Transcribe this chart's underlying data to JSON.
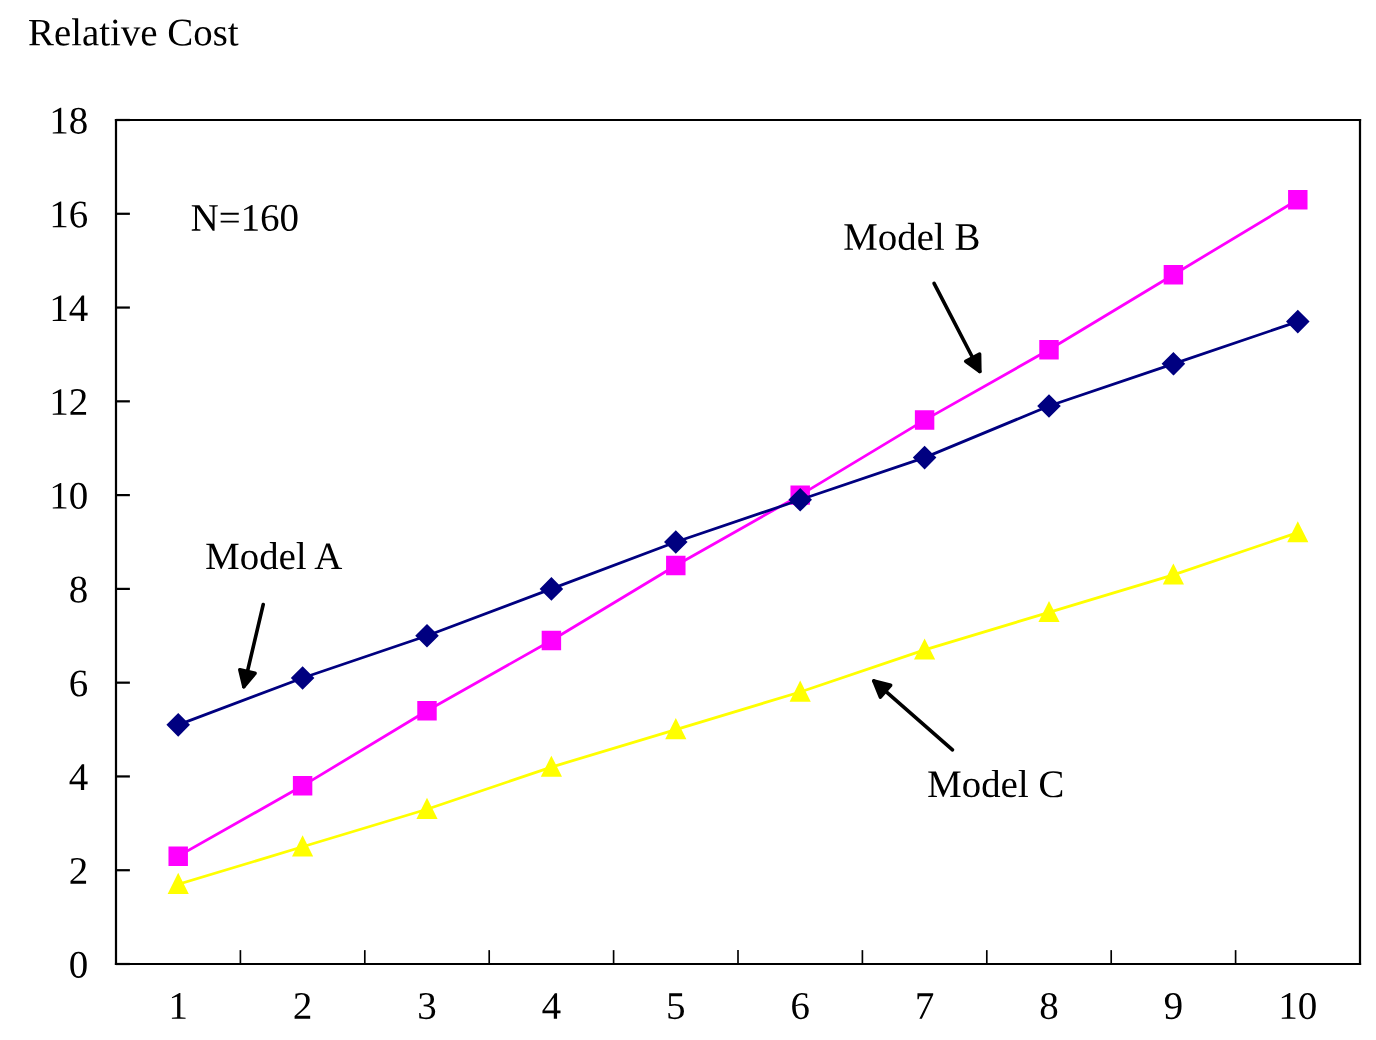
{
  "chart_data": {
    "type": "line",
    "ylabel": "Relative Cost",
    "categories": [
      "1",
      "2",
      "3",
      "4",
      "5",
      "6",
      "7",
      "8",
      "9",
      "10"
    ],
    "series": [
      {
        "name": "Model A",
        "color": "#000080",
        "marker": "diamond",
        "values": [
          5.1,
          6.1,
          7.0,
          8.0,
          9.0,
          9.9,
          10.8,
          11.9,
          12.8,
          13.7
        ]
      },
      {
        "name": "Model B",
        "color": "#ff00ff",
        "marker": "square",
        "values": [
          2.3,
          3.8,
          5.4,
          6.9,
          8.5,
          10.0,
          11.6,
          13.1,
          14.7,
          16.3
        ]
      },
      {
        "name": "Model C",
        "color": "#ffff00",
        "marker": "triangle",
        "values": [
          1.7,
          2.5,
          3.3,
          4.2,
          5.0,
          5.8,
          6.7,
          7.5,
          8.3,
          9.2
        ]
      }
    ],
    "ylim": [
      0,
      18
    ],
    "yticks": [
      0,
      2,
      4,
      6,
      8,
      10,
      12,
      14,
      16,
      18
    ],
    "annotations": [
      "N=160"
    ],
    "grid": false,
    "legend": false,
    "line_style": "solid"
  }
}
